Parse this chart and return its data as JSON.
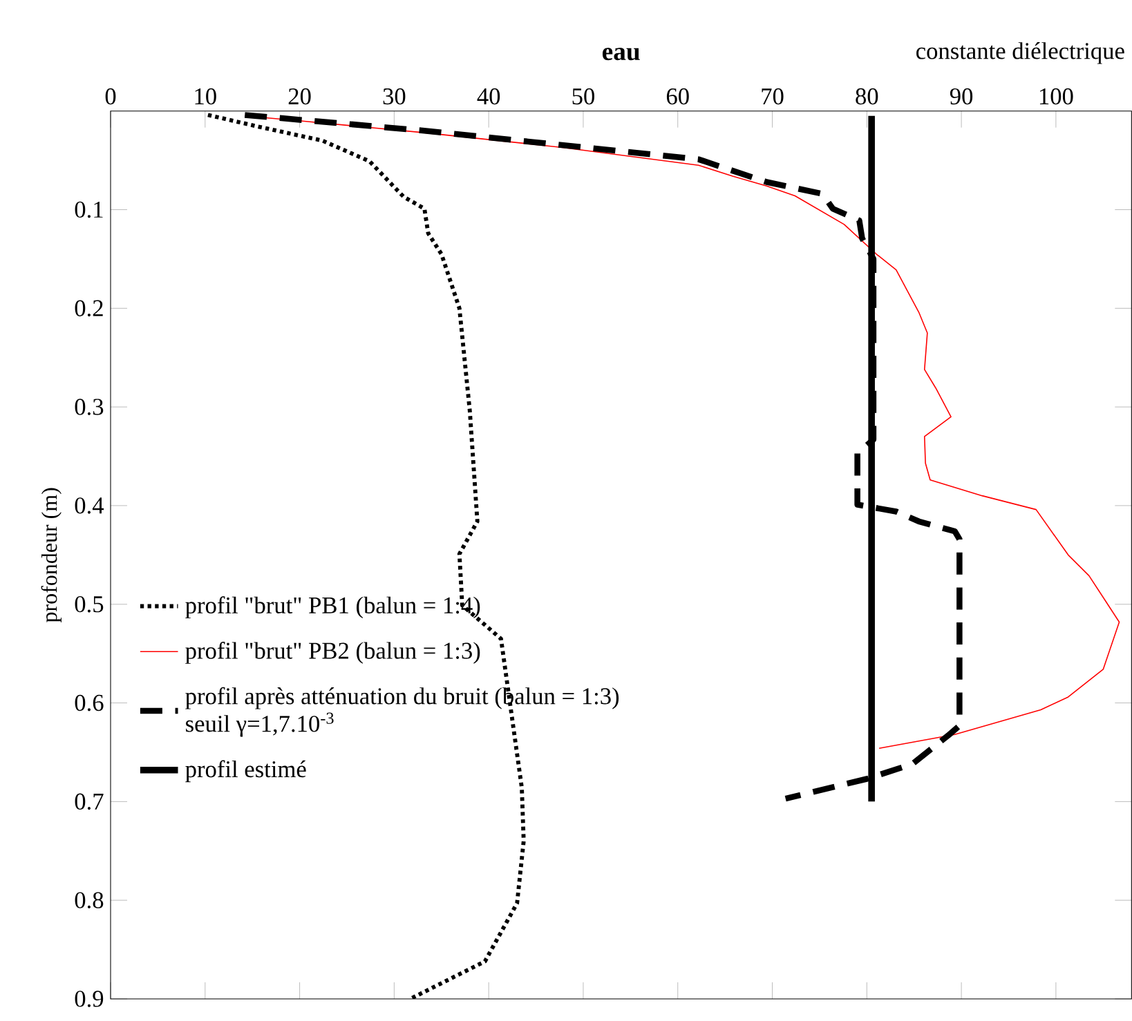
{
  "chart_data": {
    "type": "line",
    "title": "eau",
    "xlabel": "constante diélectrique",
    "ylabel": "profondeur (m)",
    "xlim": [
      0,
      108
    ],
    "xticks": [
      0,
      10,
      20,
      30,
      40,
      50,
      60,
      70,
      80,
      90,
      100
    ],
    "ylim": [
      0.9,
      0
    ],
    "yticks": [
      0.1,
      0.2,
      0.3,
      0.4,
      0.5,
      0.6,
      0.7,
      0.8,
      0.9
    ],
    "legend": "left",
    "grid": false,
    "marker": "none",
    "annotations": [
      "seuil γ=1,7.10$^{-3}$"
    ],
    "series": [
      {
        "name": "profil \"brut\" PB1 (balun = 1:4)",
        "color": "#000000",
        "line_style": "dotted",
        "x": [
          10.3,
          15.7,
          22.4,
          27.4,
          31.0,
          33.2,
          33.6,
          35.0,
          36.9,
          38.0,
          38.8,
          36.9,
          37.2,
          41.3,
          43.5,
          43.7,
          43.0,
          39.6,
          31.7
        ],
        "values": [
          0.004,
          0.016,
          0.03,
          0.051,
          0.087,
          0.099,
          0.124,
          0.145,
          0.2,
          0.304,
          0.416,
          0.449,
          0.501,
          0.535,
          0.686,
          0.74,
          0.803,
          0.862,
          0.9
        ]
      },
      {
        "name": "profil \"brut\" PB2 (balun = 1:3)",
        "color": "#ff0000",
        "line_style": "solid",
        "x": [
          14.2,
          20.1,
          33.2,
          47.8,
          62.2,
          65.8,
          69.4,
          72.4,
          77.6,
          81.0,
          83.1,
          85.5,
          86.4,
          86.1,
          87.3,
          88.9,
          86.1,
          86.2,
          86.7,
          92.2,
          97.9,
          101.3,
          103.5,
          105.0,
          106.7,
          105.0,
          101.3,
          98.4,
          89.3,
          81.3
        ],
        "values": [
          0.005,
          0.01,
          0.022,
          0.037,
          0.055,
          0.066,
          0.076,
          0.086,
          0.115,
          0.145,
          0.161,
          0.204,
          0.225,
          0.262,
          0.281,
          0.31,
          0.33,
          0.357,
          0.374,
          0.39,
          0.404,
          0.45,
          0.471,
          0.493,
          0.518,
          0.566,
          0.594,
          0.607,
          0.632,
          0.646
        ]
      },
      {
        "name": "profil après atténuation du bruit (balun = 1:3)",
        "color": "#000000",
        "line_style": "dashed",
        "x": [
          14.2,
          33.2,
          62.2,
          69.4,
          75.3,
          76.4,
          79.2,
          79.5,
          80.7,
          80.7,
          79.0,
          79.0,
          83.1,
          85.5,
          89.3,
          89.8,
          89.8,
          88.6,
          84.8,
          80.0,
          74.4,
          71.4
        ],
        "values": [
          0.004,
          0.02,
          0.049,
          0.072,
          0.084,
          0.099,
          0.111,
          0.129,
          0.15,
          0.333,
          0.347,
          0.399,
          0.406,
          0.416,
          0.426,
          0.434,
          0.623,
          0.633,
          0.662,
          0.677,
          0.69,
          0.697
        ]
      },
      {
        "name": "profil estimé",
        "color": "#000000",
        "line_style": "solid",
        "x": [
          80.5,
          80.5
        ],
        "values": [
          0.005,
          0.7
        ]
      }
    ]
  }
}
